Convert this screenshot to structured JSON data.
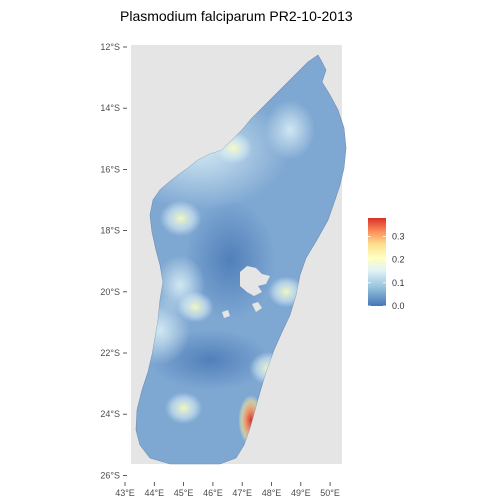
{
  "title": "Plasmodium falciparum PR2-10-2013",
  "map": {
    "y_ticks": [
      "12°S",
      "14°S",
      "16°S",
      "18°S",
      "20°S",
      "22°S",
      "24°S",
      "26°S"
    ],
    "y_values": [
      -12,
      -14,
      -16,
      -18,
      -20,
      -22,
      -24,
      -26
    ],
    "x_ticks": [
      "43°E",
      "44°E",
      "45°E",
      "46°E",
      "47°E",
      "48°E",
      "49°E",
      "50°E"
    ],
    "x_values": [
      43,
      44,
      45,
      46,
      47,
      48,
      49,
      50
    ],
    "lon_range": [
      43,
      50.5
    ],
    "lat_range": [
      -26,
      -12
    ],
    "panel_background": "#e5e5e5"
  },
  "legend": {
    "labels": [
      "0.3",
      "0.2",
      "0.1",
      "0.0"
    ],
    "values": [
      0.3,
      0.2,
      0.1,
      0.0
    ],
    "range": [
      0.0,
      0.38
    ],
    "colors": [
      "#d73027",
      "#fc8d59",
      "#fee090",
      "#ffffbf",
      "#e0f3f8",
      "#91bfdb",
      "#4575b4"
    ]
  },
  "hotspots": [
    {
      "name": "southeast-coast",
      "lon": 47.3,
      "lat": -24.2,
      "value": 0.33
    },
    {
      "name": "east-coast-central",
      "lon": 47.9,
      "lat": -22.5,
      "value": 0.17
    },
    {
      "name": "northwest-plateau",
      "lon": 44.9,
      "lat": -17.6,
      "value": 0.2
    },
    {
      "name": "north-central",
      "lon": 46.7,
      "lat": -15.3,
      "value": 0.16
    },
    {
      "name": "southwest",
      "lon": 45.0,
      "lat": -23.8,
      "value": 0.16
    },
    {
      "name": "west-central",
      "lon": 45.4,
      "lat": -20.5,
      "value": 0.15
    },
    {
      "name": "east-central",
      "lon": 48.5,
      "lat": -20.0,
      "value": 0.15
    }
  ]
}
